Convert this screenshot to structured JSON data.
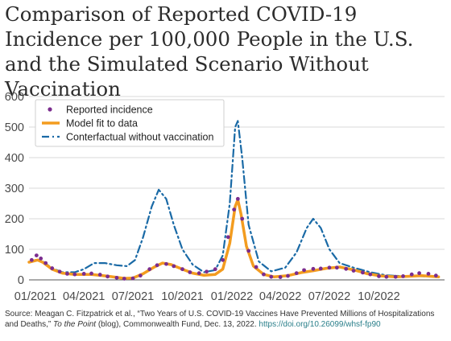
{
  "title": "Comparison of Reported COVID-19 Incidence per 100,000 People in the U.S. and the Simulated Scenario Without Vaccination",
  "source": {
    "text1": "Source: Meagan C. Fitzpatrick et al., “Two Years of U.S. COVID-19 Vaccines Have Prevented Millions of Hospitalizations and Deaths,” ",
    "italic": "To the Point",
    "text2": " (blog), Commonwealth Fund, Dec. 13, 2022. ",
    "doi": "https://doi.org/10.26099/whsf-fp90"
  },
  "colors": {
    "reported": "#7b2d8e",
    "model": "#f39c1f",
    "counterfactual": "#1a6aa6",
    "grid": "#d9d9d9"
  },
  "chart_data": {
    "type": "line",
    "title": "Comparison of Reported COVID-19 Incidence per 100,000 People in the U.S. and the Simulated Scenario Without Vaccination",
    "xlabel": "",
    "ylabel": "",
    "ylim": [
      0,
      600
    ],
    "yticks": [
      0,
      100,
      200,
      300,
      400,
      500,
      600
    ],
    "xlim": [
      "2020-12-20",
      "2023-01-31"
    ],
    "xticks": [
      "01/2021",
      "04/2021",
      "07/2021",
      "10/2021",
      "01/2022",
      "04/2022",
      "07/2022",
      "10/2022"
    ],
    "grid": "horizontal",
    "legend_position": "top-left",
    "series": [
      {
        "name": "Reported incidence",
        "style": "dots",
        "points": [
          [
            "2020-12-25",
            65
          ],
          [
            "2021-01-03",
            80
          ],
          [
            "2021-01-11",
            70
          ],
          [
            "2021-01-20",
            55
          ],
          [
            "2021-02-01",
            38
          ],
          [
            "2021-02-15",
            27
          ],
          [
            "2021-03-01",
            20
          ],
          [
            "2021-03-15",
            18
          ],
          [
            "2021-04-01",
            20
          ],
          [
            "2021-04-15",
            21
          ],
          [
            "2021-05-01",
            17
          ],
          [
            "2021-05-15",
            11
          ],
          [
            "2021-06-01",
            7
          ],
          [
            "2021-06-15",
            4
          ],
          [
            "2021-07-01",
            5
          ],
          [
            "2021-07-15",
            14
          ],
          [
            "2021-08-01",
            35
          ],
          [
            "2021-08-15",
            48
          ],
          [
            "2021-09-01",
            52
          ],
          [
            "2021-09-15",
            45
          ],
          [
            "2021-10-01",
            35
          ],
          [
            "2021-10-15",
            25
          ],
          [
            "2021-11-01",
            22
          ],
          [
            "2021-11-15",
            27
          ],
          [
            "2021-12-01",
            35
          ],
          [
            "2021-12-15",
            65
          ],
          [
            "2021-12-25",
            140
          ],
          [
            "2022-01-05",
            230
          ],
          [
            "2022-01-12",
            265
          ],
          [
            "2022-01-20",
            200
          ],
          [
            "2022-02-01",
            95
          ],
          [
            "2022-02-15",
            42
          ],
          [
            "2022-03-01",
            18
          ],
          [
            "2022-03-15",
            10
          ],
          [
            "2022-04-01",
            9
          ],
          [
            "2022-04-15",
            13
          ],
          [
            "2022-05-01",
            22
          ],
          [
            "2022-05-15",
            32
          ],
          [
            "2022-06-01",
            36
          ],
          [
            "2022-06-15",
            37
          ],
          [
            "2022-07-01",
            40
          ],
          [
            "2022-07-15",
            40
          ],
          [
            "2022-08-01",
            36
          ],
          [
            "2022-08-15",
            30
          ],
          [
            "2022-09-01",
            24
          ],
          [
            "2022-09-15",
            18
          ],
          [
            "2022-10-01",
            12
          ],
          [
            "2022-10-15",
            10
          ],
          [
            "2022-11-01",
            10
          ],
          [
            "2022-11-15",
            12
          ],
          [
            "2022-12-01",
            18
          ],
          [
            "2022-12-15",
            22
          ],
          [
            "2023-01-01",
            20
          ],
          [
            "2023-01-15",
            14
          ]
        ]
      },
      {
        "name": "Model fit to data",
        "style": "solid",
        "points": [
          [
            "2020-12-20",
            58
          ],
          [
            "2021-01-05",
            65
          ],
          [
            "2021-01-15",
            57
          ],
          [
            "2021-02-01",
            35
          ],
          [
            "2021-02-20",
            22
          ],
          [
            "2021-03-15",
            18
          ],
          [
            "2021-04-15",
            18
          ],
          [
            "2021-05-15",
            12
          ],
          [
            "2021-06-15",
            5
          ],
          [
            "2021-07-01",
            6
          ],
          [
            "2021-07-20",
            20
          ],
          [
            "2021-08-10",
            42
          ],
          [
            "2021-08-25",
            55
          ],
          [
            "2021-09-10",
            50
          ],
          [
            "2021-10-01",
            35
          ],
          [
            "2021-10-20",
            22
          ],
          [
            "2021-11-10",
            15
          ],
          [
            "2021-12-01",
            18
          ],
          [
            "2021-12-15",
            35
          ],
          [
            "2021-12-28",
            120
          ],
          [
            "2022-01-07",
            240
          ],
          [
            "2022-01-12",
            262
          ],
          [
            "2022-01-18",
            215
          ],
          [
            "2022-01-28",
            110
          ],
          [
            "2022-02-10",
            45
          ],
          [
            "2022-03-01",
            18
          ],
          [
            "2022-03-20",
            10
          ],
          [
            "2022-04-15",
            14
          ],
          [
            "2022-05-10",
            24
          ],
          [
            "2022-06-01",
            30
          ],
          [
            "2022-06-25",
            38
          ],
          [
            "2022-07-20",
            42
          ],
          [
            "2022-08-15",
            33
          ],
          [
            "2022-09-10",
            20
          ],
          [
            "2022-10-05",
            13
          ],
          [
            "2022-11-01",
            10
          ],
          [
            "2022-12-01",
            12
          ],
          [
            "2022-12-20",
            14
          ],
          [
            "2023-01-20",
            10
          ]
        ]
      },
      {
        "name": "Conterfactual without vaccination",
        "style": "dashdot",
        "points": [
          [
            "2020-12-20",
            58
          ],
          [
            "2021-01-05",
            67
          ],
          [
            "2021-01-15",
            60
          ],
          [
            "2021-02-01",
            38
          ],
          [
            "2021-02-20",
            25
          ],
          [
            "2021-03-15",
            25
          ],
          [
            "2021-04-01",
            35
          ],
          [
            "2021-04-20",
            55
          ],
          [
            "2021-05-10",
            55
          ],
          [
            "2021-06-01",
            48
          ],
          [
            "2021-06-20",
            45
          ],
          [
            "2021-07-05",
            65
          ],
          [
            "2021-07-20",
            140
          ],
          [
            "2021-08-05",
            240
          ],
          [
            "2021-08-18",
            295
          ],
          [
            "2021-09-01",
            265
          ],
          [
            "2021-09-15",
            180
          ],
          [
            "2021-10-01",
            100
          ],
          [
            "2021-10-20",
            50
          ],
          [
            "2021-11-10",
            25
          ],
          [
            "2021-12-01",
            32
          ],
          [
            "2021-12-15",
            80
          ],
          [
            "2021-12-28",
            250
          ],
          [
            "2022-01-07",
            500
          ],
          [
            "2022-01-12",
            520
          ],
          [
            "2022-01-20",
            400
          ],
          [
            "2022-02-01",
            180
          ],
          [
            "2022-02-20",
            60
          ],
          [
            "2022-03-15",
            28
          ],
          [
            "2022-04-10",
            40
          ],
          [
            "2022-05-01",
            90
          ],
          [
            "2022-05-20",
            170
          ],
          [
            "2022-06-01",
            200
          ],
          [
            "2022-06-15",
            170
          ],
          [
            "2022-07-01",
            100
          ],
          [
            "2022-07-20",
            55
          ],
          [
            "2022-08-15",
            40
          ],
          [
            "2022-09-15",
            25
          ],
          [
            "2022-10-15",
            15
          ],
          [
            "2022-11-15",
            12
          ],
          [
            "2022-12-15",
            12
          ],
          [
            "2023-01-20",
            10
          ]
        ]
      }
    ]
  }
}
